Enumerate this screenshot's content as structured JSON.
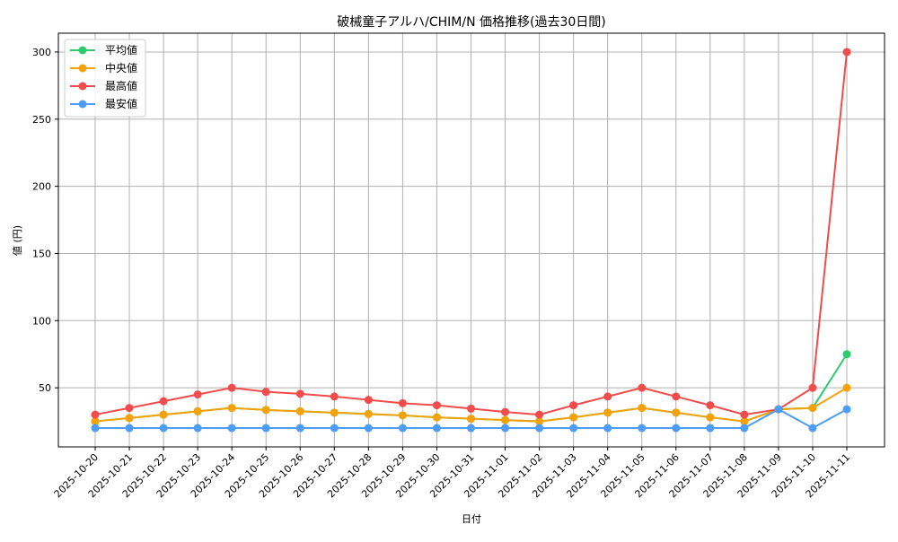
{
  "chart_data": {
    "type": "line",
    "title": "破械童子アルハ/CHIM/N 価格推移(過去30日間)",
    "xlabel": "日付",
    "ylabel": "値 (円)",
    "ylim": [
      6,
      314
    ],
    "yticks": [
      50,
      100,
      150,
      200,
      250,
      300
    ],
    "grid": true,
    "legend_position": "upper left",
    "x": [
      "2025-10-20",
      "2025-10-21",
      "2025-10-22",
      "2025-10-23",
      "2025-10-24",
      "2025-10-25",
      "2025-10-26",
      "2025-10-27",
      "2025-10-28",
      "2025-10-29",
      "2025-10-30",
      "2025-10-31",
      "2025-11-01",
      "2025-11-02",
      "2025-11-03",
      "2025-11-04",
      "2025-11-05",
      "2025-11-06",
      "2025-11-07",
      "2025-11-08",
      "2025-11-09",
      "2025-11-10",
      "2025-11-11"
    ],
    "series": [
      {
        "name": "平均値",
        "color": "#2ecc71",
        "values": [
          25,
          27.5,
          30,
          32.5,
          35,
          33.5,
          32.5,
          31.5,
          30.5,
          29.5,
          28,
          27,
          26,
          25,
          28,
          31.5,
          35,
          31.5,
          28,
          25,
          34,
          35,
          75
        ]
      },
      {
        "name": "中央値",
        "color": "#f5a20a",
        "values": [
          25,
          27.5,
          30,
          32.5,
          35,
          33.5,
          32.5,
          31.5,
          30.5,
          29.5,
          28,
          27,
          26,
          25,
          28,
          31.5,
          35,
          31.5,
          28,
          25,
          34,
          35,
          50
        ]
      },
      {
        "name": "最高値",
        "color": "#f24b4b",
        "values": [
          30,
          35,
          40,
          45,
          50,
          47,
          45.5,
          43.5,
          41,
          38.5,
          37,
          34.5,
          32,
          30,
          37,
          43.5,
          50,
          43.5,
          37,
          30,
          34,
          50,
          300
        ]
      },
      {
        "name": "最安値",
        "color": "#4d9cf5",
        "values": [
          20,
          20,
          20,
          20,
          20,
          20,
          20,
          20,
          20,
          20,
          20,
          20,
          20,
          20,
          20,
          20,
          20,
          20,
          20,
          20,
          34,
          20,
          34
        ]
      }
    ]
  },
  "colors": {
    "grid": "#b0b0b0",
    "axis": "#000000",
    "legend_border": "#cccccc"
  }
}
